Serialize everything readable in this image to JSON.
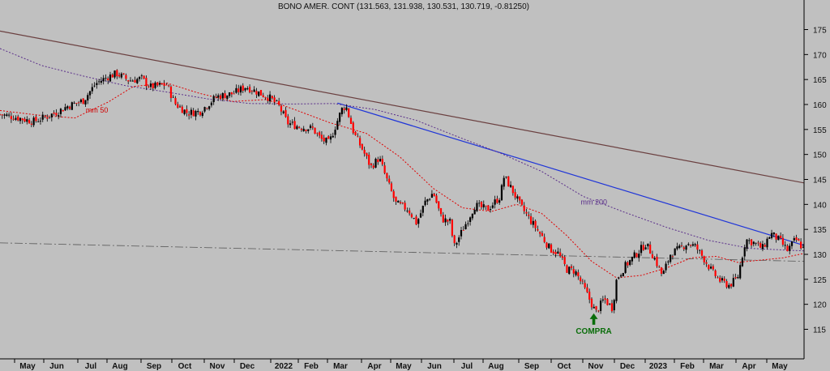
{
  "chart_data": {
    "type": "candlestick",
    "title": "BONO AMER. CONT (131.563, 131.938, 130.531, 130.719, -0.81250)",
    "ylim": [
      112,
      178
    ],
    "y_ticks": [
      115,
      120,
      125,
      130,
      135,
      140,
      145,
      150,
      155,
      160,
      165,
      170,
      175
    ],
    "x_ticks": [
      "May",
      "Jun",
      "Jul",
      "Aug",
      "Sep",
      "Oct",
      "Nov",
      "Dec",
      "2022",
      "Feb",
      "Mar",
      "Apr",
      "May",
      "Jun",
      "Jul",
      "Aug",
      "Sep",
      "Oct",
      "Nov",
      "Dec",
      "2023",
      "Feb",
      "Mar",
      "Apr",
      "May"
    ],
    "grid": false,
    "price_series": [
      {
        "x": 0,
        "y": 158.0
      },
      {
        "x": 0.02,
        "y": 157.4
      },
      {
        "x": 0.04,
        "y": 156.6
      },
      {
        "x": 0.055,
        "y": 157.5
      },
      {
        "x": 0.07,
        "y": 158.6
      },
      {
        "x": 0.08,
        "y": 159.6
      },
      {
        "x": 0.1,
        "y": 160.8
      },
      {
        "x": 0.115,
        "y": 164.2
      },
      {
        "x": 0.13,
        "y": 165.6
      },
      {
        "x": 0.14,
        "y": 166.2
      },
      {
        "x": 0.155,
        "y": 164.8
      },
      {
        "x": 0.17,
        "y": 165.2
      },
      {
        "x": 0.18,
        "y": 163.5
      },
      {
        "x": 0.2,
        "y": 164.0
      },
      {
        "x": 0.21,
        "y": 160.2
      },
      {
        "x": 0.225,
        "y": 158.3
      },
      {
        "x": 0.24,
        "y": 158.6
      },
      {
        "x": 0.26,
        "y": 161.6
      },
      {
        "x": 0.28,
        "y": 162.2
      },
      {
        "x": 0.295,
        "y": 163.6
      },
      {
        "x": 0.31,
        "y": 162.4
      },
      {
        "x": 0.325,
        "y": 161.2
      },
      {
        "x": 0.335,
        "y": 159.6
      },
      {
        "x": 0.345,
        "y": 156.3
      },
      {
        "x": 0.36,
        "y": 155.5
      },
      {
        "x": 0.375,
        "y": 155.2
      },
      {
        "x": 0.385,
        "y": 153.1
      },
      {
        "x": 0.395,
        "y": 152.3
      },
      {
        "x": 0.41,
        "y": 159.0
      },
      {
        "x": 0.415,
        "y": 159.8
      },
      {
        "x": 0.425,
        "y": 154.1
      },
      {
        "x": 0.435,
        "y": 151.0
      },
      {
        "x": 0.445,
        "y": 147.5
      },
      {
        "x": 0.455,
        "y": 149.3
      },
      {
        "x": 0.465,
        "y": 144.6
      },
      {
        "x": 0.475,
        "y": 140.2
      },
      {
        "x": 0.49,
        "y": 139.0
      },
      {
        "x": 0.5,
        "y": 136.2
      },
      {
        "x": 0.51,
        "y": 140.4
      },
      {
        "x": 0.52,
        "y": 142.4
      },
      {
        "x": 0.53,
        "y": 137.1
      },
      {
        "x": 0.54,
        "y": 136.5
      },
      {
        "x": 0.545,
        "y": 131.5
      },
      {
        "x": 0.555,
        "y": 134.8
      },
      {
        "x": 0.57,
        "y": 139.8
      },
      {
        "x": 0.585,
        "y": 139.0
      },
      {
        "x": 0.6,
        "y": 141.5
      },
      {
        "x": 0.605,
        "y": 145.6
      },
      {
        "x": 0.615,
        "y": 142.8
      },
      {
        "x": 0.625,
        "y": 139.6
      },
      {
        "x": 0.64,
        "y": 136.0
      },
      {
        "x": 0.65,
        "y": 133.7
      },
      {
        "x": 0.66,
        "y": 131.1
      },
      {
        "x": 0.67,
        "y": 130.2
      },
      {
        "x": 0.68,
        "y": 127.0
      },
      {
        "x": 0.69,
        "y": 126.7
      },
      {
        "x": 0.7,
        "y": 123.6
      },
      {
        "x": 0.71,
        "y": 120.1
      },
      {
        "x": 0.715,
        "y": 118.3
      },
      {
        "x": 0.725,
        "y": 121.1
      },
      {
        "x": 0.735,
        "y": 119.2
      },
      {
        "x": 0.74,
        "y": 125.0
      },
      {
        "x": 0.75,
        "y": 127.6
      },
      {
        "x": 0.765,
        "y": 130.3
      },
      {
        "x": 0.775,
        "y": 132.1
      },
      {
        "x": 0.785,
        "y": 129.4
      },
      {
        "x": 0.795,
        "y": 125.7
      },
      {
        "x": 0.805,
        "y": 130.2
      },
      {
        "x": 0.815,
        "y": 131.0
      },
      {
        "x": 0.825,
        "y": 132.3
      },
      {
        "x": 0.835,
        "y": 131.5
      },
      {
        "x": 0.845,
        "y": 129.1
      },
      {
        "x": 0.855,
        "y": 126.4
      },
      {
        "x": 0.865,
        "y": 124.6
      },
      {
        "x": 0.875,
        "y": 123.8
      },
      {
        "x": 0.885,
        "y": 125.2
      },
      {
        "x": 0.895,
        "y": 133.0
      },
      {
        "x": 0.905,
        "y": 132.3
      },
      {
        "x": 0.915,
        "y": 131.2
      },
      {
        "x": 0.925,
        "y": 134.2
      },
      {
        "x": 0.935,
        "y": 132.9
      },
      {
        "x": 0.945,
        "y": 130.8
      },
      {
        "x": 0.955,
        "y": 133.0
      },
      {
        "x": 0.965,
        "y": 131.0
      }
    ],
    "ma50": [
      {
        "x": 0.0,
        "y": 158.8
      },
      {
        "x": 0.05,
        "y": 157.8
      },
      {
        "x": 0.09,
        "y": 157.3
      },
      {
        "x": 0.13,
        "y": 160.5
      },
      {
        "x": 0.16,
        "y": 163.6
      },
      {
        "x": 0.2,
        "y": 164.3
      },
      {
        "x": 0.24,
        "y": 162.2
      },
      {
        "x": 0.28,
        "y": 160.6
      },
      {
        "x": 0.32,
        "y": 161.0
      },
      {
        "x": 0.355,
        "y": 158.9
      },
      {
        "x": 0.395,
        "y": 156.4
      },
      {
        "x": 0.44,
        "y": 154.2
      },
      {
        "x": 0.48,
        "y": 149.5
      },
      {
        "x": 0.52,
        "y": 143.2
      },
      {
        "x": 0.555,
        "y": 139.3
      },
      {
        "x": 0.59,
        "y": 138.6
      },
      {
        "x": 0.62,
        "y": 140.0
      },
      {
        "x": 0.65,
        "y": 138.2
      },
      {
        "x": 0.68,
        "y": 133.8
      },
      {
        "x": 0.71,
        "y": 128.6
      },
      {
        "x": 0.74,
        "y": 125.3
      },
      {
        "x": 0.77,
        "y": 125.8
      },
      {
        "x": 0.8,
        "y": 127.3
      },
      {
        "x": 0.83,
        "y": 129.3
      },
      {
        "x": 0.86,
        "y": 129.6
      },
      {
        "x": 0.885,
        "y": 128.4
      },
      {
        "x": 0.91,
        "y": 128.8
      },
      {
        "x": 0.94,
        "y": 129.3
      },
      {
        "x": 0.965,
        "y": 130.2
      }
    ],
    "ma200": [
      {
        "x": 0.0,
        "y": 171.2
      },
      {
        "x": 0.05,
        "y": 167.8
      },
      {
        "x": 0.1,
        "y": 165.7
      },
      {
        "x": 0.15,
        "y": 163.8
      },
      {
        "x": 0.2,
        "y": 162.5
      },
      {
        "x": 0.25,
        "y": 161.1
      },
      {
        "x": 0.3,
        "y": 160.2
      },
      {
        "x": 0.35,
        "y": 160.1
      },
      {
        "x": 0.4,
        "y": 160.2
      },
      {
        "x": 0.45,
        "y": 159.0
      },
      {
        "x": 0.5,
        "y": 156.8
      },
      {
        "x": 0.55,
        "y": 153.5
      },
      {
        "x": 0.6,
        "y": 150.3
      },
      {
        "x": 0.65,
        "y": 146.6
      },
      {
        "x": 0.7,
        "y": 141.6
      },
      {
        "x": 0.75,
        "y": 138.4
      },
      {
        "x": 0.8,
        "y": 135.4
      },
      {
        "x": 0.85,
        "y": 132.8
      },
      {
        "x": 0.9,
        "y": 131.2
      },
      {
        "x": 0.95,
        "y": 130.8
      },
      {
        "x": 0.965,
        "y": 130.7
      }
    ],
    "trendlines": [
      {
        "kind": "resistance-long",
        "color": "#6b4040",
        "from": {
          "x": 0.0,
          "y": 174.7
        },
        "to": {
          "x": 0.965,
          "y": 144.3
        }
      },
      {
        "kind": "resistance-short",
        "color": "#1f35d8",
        "from": {
          "x": 0.405,
          "y": 160.3
        },
        "to": {
          "x": 0.965,
          "y": 131.8
        }
      },
      {
        "kind": "support-dashdot",
        "color": "#646464",
        "from": {
          "x": 0.0,
          "y": 132.3
        },
        "to": {
          "x": 0.965,
          "y": 128.6
        }
      }
    ],
    "annotations": [
      {
        "text": "mm 50",
        "x": 0.103,
        "y": 158.4,
        "color": "#d00000"
      },
      {
        "text": "mm 200",
        "x": 0.697,
        "y": 140.0,
        "color": "#5a2e8a"
      },
      {
        "text": "COMPRA",
        "x": 0.698,
        "y": 114.3,
        "color": "#0a6d0a",
        "arrow": true
      }
    ],
    "colors": {
      "background": "#c0c0c0",
      "candle_up": "#000000",
      "candle_down": "#ff0000",
      "ma50": "#e00000",
      "ma200": "#5a2e8a"
    }
  }
}
